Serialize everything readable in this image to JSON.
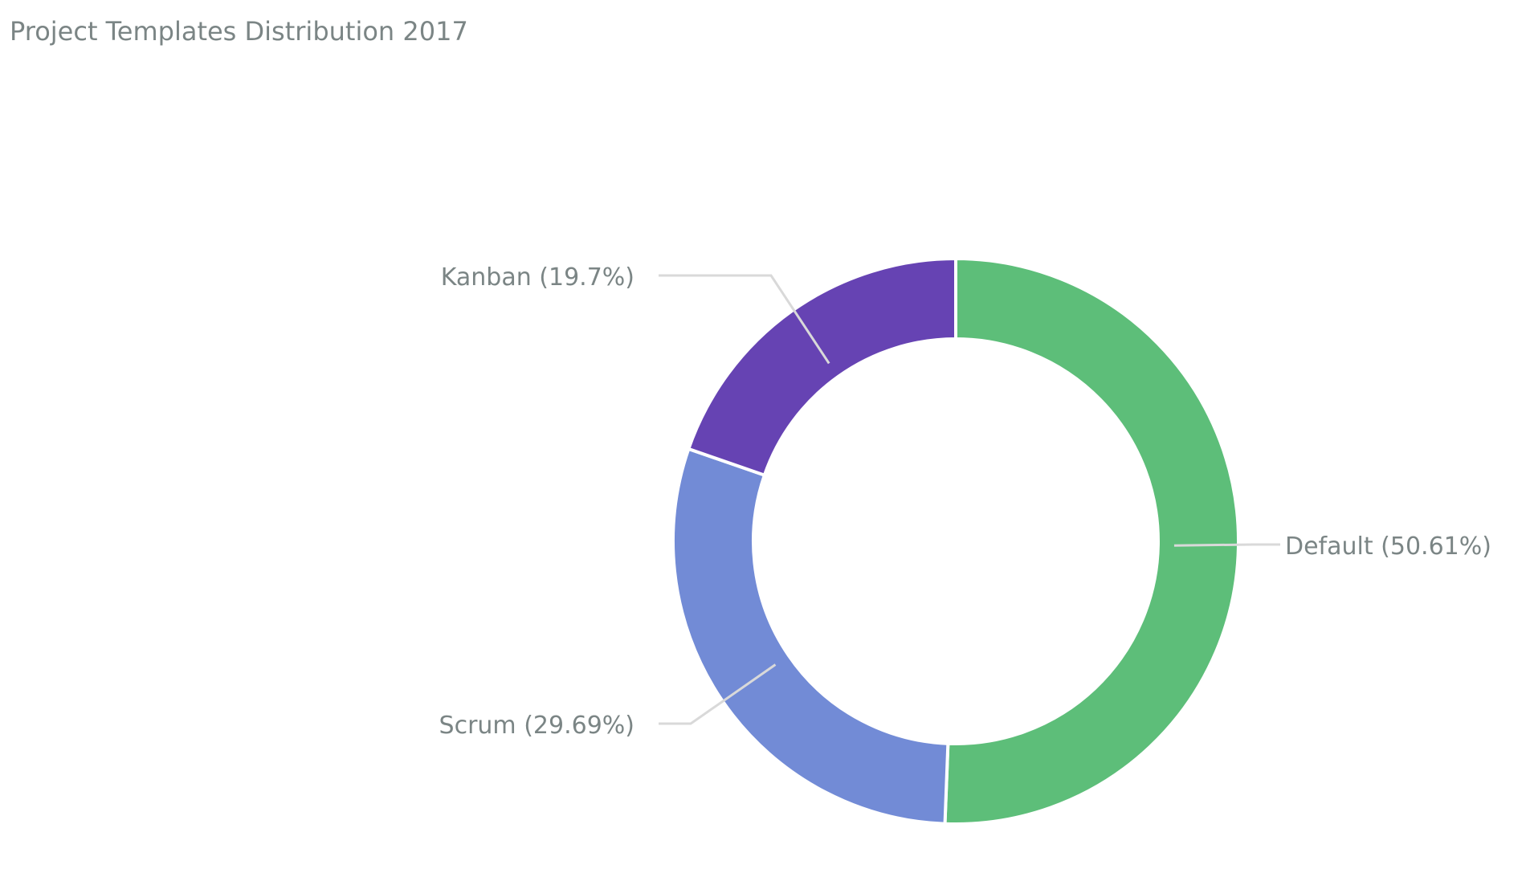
{
  "chart_data": {
    "type": "pie",
    "title": "Project Templates Distribution 2017",
    "donut": true,
    "slices": [
      {
        "name": "Default",
        "value": 50.61,
        "label": "Default (50.61%)",
        "color": "#5dbe79"
      },
      {
        "name": "Scrum",
        "value": 29.69,
        "label": "Scrum (29.69%)",
        "color": "#728bd6"
      },
      {
        "name": "Kanban",
        "value": 19.7,
        "label": "Kanban (19.7%)",
        "color": "#6643b3"
      }
    ]
  }
}
